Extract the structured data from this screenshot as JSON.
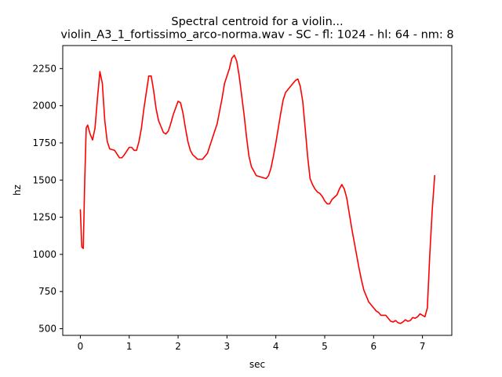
{
  "chart_data": {
    "type": "line",
    "title_line1": "Spectral centroid for a violin...",
    "title_line2": "violin_A3_1_fortissimo_arco-norma.wav - SC - fl: 1024 - hl: 64 - nm: 8",
    "xlabel": "sec",
    "ylabel": "hz",
    "xlim": [
      -0.36,
      7.6
    ],
    "ylim": [
      455,
      2405
    ],
    "xticks": [
      0,
      1,
      2,
      3,
      4,
      5,
      6,
      7
    ],
    "xtick_labels": [
      "0",
      "1",
      "2",
      "3",
      "4",
      "5",
      "6",
      "7"
    ],
    "yticks": [
      500,
      750,
      1000,
      1250,
      1500,
      1750,
      2000,
      2250
    ],
    "ytick_labels": [
      "500",
      "750",
      "1000",
      "1250",
      "1500",
      "1750",
      "2000",
      "2250"
    ],
    "grid": false,
    "series": [
      {
        "color": "#ff0000",
        "x": [
          0.0,
          0.03,
          0.06,
          0.09,
          0.12,
          0.15,
          0.2,
          0.25,
          0.3,
          0.35,
          0.4,
          0.45,
          0.5,
          0.55,
          0.6,
          0.7,
          0.8,
          0.85,
          0.9,
          1.0,
          1.05,
          1.1,
          1.15,
          1.2,
          1.25,
          1.3,
          1.4,
          1.45,
          1.5,
          1.55,
          1.6,
          1.65,
          1.7,
          1.75,
          1.8,
          1.85,
          1.9,
          2.0,
          2.05,
          2.1,
          2.15,
          2.2,
          2.25,
          2.3,
          2.4,
          2.5,
          2.6,
          2.7,
          2.8,
          2.9,
          2.95,
          3.0,
          3.05,
          3.1,
          3.15,
          3.2,
          3.25,
          3.3,
          3.35,
          3.4,
          3.45,
          3.5,
          3.6,
          3.7,
          3.8,
          3.85,
          3.9,
          3.95,
          4.0,
          4.05,
          4.1,
          4.15,
          4.2,
          4.3,
          4.4,
          4.45,
          4.5,
          4.55,
          4.6,
          4.65,
          4.7,
          4.75,
          4.8,
          4.85,
          4.9,
          4.95,
          5.0,
          5.05,
          5.1,
          5.15,
          5.2,
          5.25,
          5.3,
          5.35,
          5.4,
          5.45,
          5.5,
          5.55,
          5.6,
          5.65,
          5.7,
          5.75,
          5.8,
          5.85,
          5.9,
          6.0,
          6.05,
          6.1,
          6.15,
          6.2,
          6.25,
          6.3,
          6.35,
          6.4,
          6.45,
          6.5,
          6.55,
          6.6,
          6.65,
          6.7,
          6.75,
          6.8,
          6.85,
          6.9,
          6.95,
          7.0,
          7.05,
          7.1,
          7.15,
          7.2,
          7.25
        ],
        "y": [
          1300,
          1050,
          1040,
          1500,
          1850,
          1870,
          1810,
          1770,
          1850,
          2050,
          2230,
          2150,
          1900,
          1760,
          1710,
          1700,
          1650,
          1650,
          1670,
          1720,
          1720,
          1700,
          1700,
          1760,
          1850,
          1980,
          2200,
          2200,
          2100,
          1980,
          1900,
          1860,
          1820,
          1810,
          1830,
          1880,
          1940,
          2030,
          2020,
          1950,
          1850,
          1760,
          1700,
          1670,
          1640,
          1640,
          1680,
          1780,
          1880,
          2050,
          2150,
          2200,
          2250,
          2320,
          2340,
          2300,
          2200,
          2070,
          1940,
          1790,
          1660,
          1590,
          1530,
          1520,
          1510,
          1530,
          1580,
          1660,
          1750,
          1850,
          1950,
          2040,
          2090,
          2130,
          2170,
          2180,
          2130,
          2030,
          1850,
          1660,
          1510,
          1470,
          1440,
          1420,
          1410,
          1390,
          1360,
          1340,
          1340,
          1370,
          1385,
          1400,
          1440,
          1470,
          1440,
          1380,
          1280,
          1180,
          1090,
          1000,
          910,
          830,
          760,
          720,
          680,
          640,
          620,
          610,
          590,
          590,
          590,
          570,
          550,
          545,
          555,
          540,
          535,
          545,
          560,
          550,
          555,
          575,
          570,
          580,
          600,
          590,
          580,
          640,
          1000,
          1300,
          1530
        ]
      }
    ]
  }
}
